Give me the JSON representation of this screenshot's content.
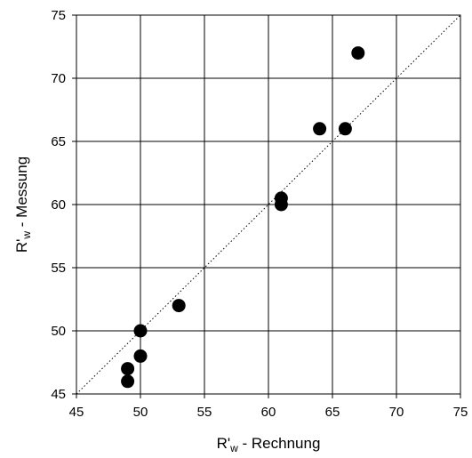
{
  "chart_data": {
    "type": "scatter",
    "title": "",
    "xlabel": {
      "base": "R'",
      "sub": "w",
      "rest": " - Rechnung"
    },
    "ylabel": {
      "base": "R'",
      "sub": "w",
      "rest": " - Messung"
    },
    "xlim": [
      45,
      75
    ],
    "ylim": [
      45,
      75
    ],
    "xticks": [
      "45",
      "50",
      "55",
      "60",
      "65",
      "70",
      "75"
    ],
    "yticks": [
      "45",
      "50",
      "55",
      "60",
      "65",
      "70",
      "75"
    ],
    "grid": true,
    "reference_line": {
      "style": "dotted",
      "from": [
        45,
        45
      ],
      "to": [
        75,
        75
      ]
    },
    "points": [
      {
        "x": 49,
        "y": 46
      },
      {
        "x": 49,
        "y": 47
      },
      {
        "x": 50,
        "y": 48
      },
      {
        "x": 50,
        "y": 50
      },
      {
        "x": 53,
        "y": 52
      },
      {
        "x": 61,
        "y": 60
      },
      {
        "x": 61,
        "y": 60.5
      },
      {
        "x": 64,
        "y": 66
      },
      {
        "x": 66,
        "y": 66
      },
      {
        "x": 67,
        "y": 72
      }
    ],
    "marker_color": "#000000"
  }
}
